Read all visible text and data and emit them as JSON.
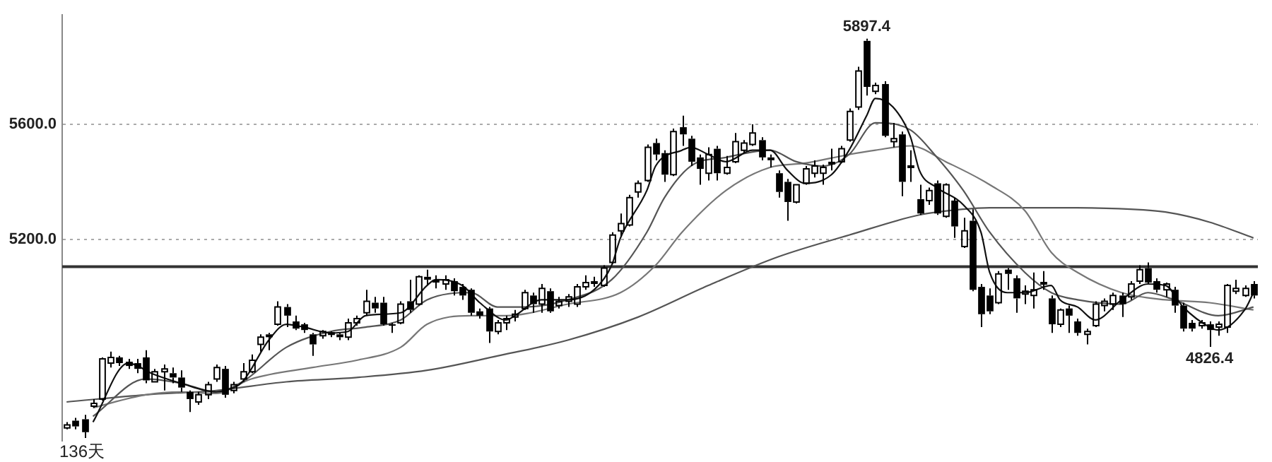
{
  "chart_data": {
    "type": "candlestick",
    "color": "#000000",
    "categories": [
      null,
      null,
      null,
      null,
      null,
      null,
      null,
      null,
      null,
      null,
      null,
      null,
      null,
      null,
      null,
      null,
      null,
      null,
      null,
      null,
      null,
      null,
      null,
      null,
      null,
      null,
      null,
      null,
      null,
      null,
      null,
      null,
      null,
      null,
      null,
      null,
      null,
      null,
      null,
      null,
      null,
      null,
      null,
      null,
      null,
      null,
      null,
      null,
      null,
      null,
      null,
      null,
      null,
      null,
      null,
      null,
      null,
      null,
      null,
      null,
      null,
      null,
      null,
      null,
      null,
      null,
      null,
      null,
      null,
      null,
      null,
      null,
      null,
      null,
      null,
      null,
      null,
      null,
      null,
      null,
      null,
      null,
      null,
      null,
      null,
      null,
      null,
      null,
      null,
      null,
      null,
      null,
      null,
      null,
      null,
      null,
      null,
      null,
      null,
      null,
      null,
      null,
      null,
      null,
      null,
      null,
      null,
      null,
      null,
      null,
      null,
      null,
      null,
      null,
      null,
      null,
      null,
      null,
      null,
      null,
      null,
      null,
      null,
      null,
      null,
      null,
      null,
      null,
      null,
      null,
      null,
      null,
      null,
      null,
      null,
      null
    ],
    "ohlc": [
      [
        4545,
        4565,
        4540,
        4555
      ],
      [
        4570,
        4580,
        4540,
        4550
      ],
      [
        4575,
        4590,
        4510,
        4530
      ],
      [
        4620,
        4645,
        4615,
        4630
      ],
      [
        4645,
        4790,
        4640,
        4785
      ],
      [
        4770,
        4810,
        4755,
        4790
      ],
      [
        4790,
        4795,
        4760,
        4770
      ],
      [
        4775,
        4785,
        4750,
        4760
      ],
      [
        4770,
        4785,
        4735,
        4750
      ],
      [
        4790,
        4815,
        4700,
        4710
      ],
      [
        4705,
        4750,
        4705,
        4740
      ],
      [
        4740,
        4765,
        4675,
        4750
      ],
      [
        4735,
        4755,
        4700,
        4720
      ],
      [
        4720,
        4745,
        4670,
        4685
      ],
      [
        4670,
        4675,
        4600,
        4645
      ],
      [
        4635,
        4670,
        4625,
        4660
      ],
      [
        4660,
        4705,
        4645,
        4695
      ],
      [
        4715,
        4765,
        4705,
        4755
      ],
      [
        4750,
        4760,
        4650,
        4660
      ],
      [
        4675,
        4705,
        4665,
        4695
      ],
      [
        4715,
        4770,
        4705,
        4740
      ],
      [
        4740,
        4800,
        4735,
        4780
      ],
      [
        4835,
        4870,
        4810,
        4860
      ],
      [
        4870,
        4875,
        4815,
        4860
      ],
      [
        4905,
        4985,
        4900,
        4965
      ],
      [
        4965,
        4975,
        4895,
        4935
      ],
      [
        4915,
        4935,
        4885,
        4890
      ],
      [
        4905,
        4910,
        4875,
        4885
      ],
      [
        4870,
        4875,
        4795,
        4835
      ],
      [
        4865,
        4885,
        4855,
        4880
      ],
      [
        4870,
        4880,
        4860,
        4875
      ],
      [
        4870,
        4875,
        4850,
        4860
      ],
      [
        4860,
        4925,
        4850,
        4910
      ],
      [
        4910,
        4935,
        4900,
        4925
      ],
      [
        4945,
        5025,
        4935,
        4985
      ],
      [
        4980,
        5000,
        4945,
        4960
      ],
      [
        4980,
        5000,
        4900,
        4905
      ],
      [
        4905,
        4910,
        4875,
        4900
      ],
      [
        4910,
        4985,
        4905,
        4975
      ],
      [
        4985,
        5060,
        4945,
        4955
      ],
      [
        4975,
        5075,
        4970,
        5070
      ],
      [
        5070,
        5095,
        5040,
        5060
      ],
      [
        5060,
        5075,
        5030,
        5050
      ],
      [
        5045,
        5075,
        5025,
        5060
      ],
      [
        5055,
        5065,
        5005,
        5020
      ],
      [
        5035,
        5045,
        4990,
        5005
      ],
      [
        5025,
        5030,
        4935,
        4945
      ],
      [
        4950,
        4960,
        4925,
        4935
      ],
      [
        4960,
        4965,
        4840,
        4880
      ],
      [
        4880,
        4920,
        4870,
        4910
      ],
      [
        4910,
        4935,
        4885,
        4925
      ],
      [
        4930,
        4955,
        4915,
        4940
      ],
      [
        4960,
        5025,
        4955,
        5015
      ],
      [
        5005,
        5015,
        4945,
        4975
      ],
      [
        4975,
        5045,
        4945,
        5030
      ],
      [
        5020,
        5030,
        4945,
        4950
      ],
      [
        4970,
        5000,
        4960,
        4985
      ],
      [
        4985,
        5010,
        4965,
        5000
      ],
      [
        4975,
        5045,
        4965,
        5035
      ],
      [
        5035,
        5075,
        5025,
        5050
      ],
      [
        5055,
        5070,
        5035,
        5045
      ],
      [
        5040,
        5110,
        5035,
        5100
      ],
      [
        5120,
        5225,
        5115,
        5215
      ],
      [
        5230,
        5290,
        5210,
        5255
      ],
      [
        5250,
        5355,
        5245,
        5345
      ],
      [
        5365,
        5405,
        5345,
        5395
      ],
      [
        5405,
        5530,
        5400,
        5520
      ],
      [
        5535,
        5550,
        5475,
        5495
      ],
      [
        5500,
        5510,
        5400,
        5425
      ],
      [
        5425,
        5585,
        5420,
        5575
      ],
      [
        5590,
        5630,
        5525,
        5565
      ],
      [
        5550,
        5560,
        5455,
        5470
      ],
      [
        5485,
        5495,
        5390,
        5445
      ],
      [
        5430,
        5520,
        5405,
        5495
      ],
      [
        5515,
        5525,
        5405,
        5430
      ],
      [
        5430,
        5490,
        5425,
        5450
      ],
      [
        5470,
        5570,
        5465,
        5540
      ],
      [
        5510,
        5545,
        5500,
        5535
      ],
      [
        5530,
        5600,
        5525,
        5570
      ],
      [
        5545,
        5555,
        5475,
        5485
      ],
      [
        5485,
        5495,
        5450,
        5475
      ],
      [
        5430,
        5440,
        5345,
        5365
      ],
      [
        5400,
        5410,
        5265,
        5330
      ],
      [
        5330,
        5390,
        5325,
        5390
      ],
      [
        5395,
        5455,
        5390,
        5445
      ],
      [
        5430,
        5475,
        5415,
        5455
      ],
      [
        5430,
        5460,
        5390,
        5450
      ],
      [
        5470,
        5515,
        5440,
        5460
      ],
      [
        5470,
        5525,
        5465,
        5515
      ],
      [
        5545,
        5655,
        5540,
        5645
      ],
      [
        5660,
        5800,
        5650,
        5785
      ],
      [
        5890,
        5897.4,
        5700,
        5730
      ],
      [
        5715,
        5745,
        5705,
        5735
      ],
      [
        5740,
        5750,
        5555,
        5560
      ],
      [
        5540,
        5605,
        5520,
        5550
      ],
      [
        5565,
        5575,
        5350,
        5400
      ],
      [
        5450,
        5510,
        5400,
        5455
      ],
      [
        5340,
        5390,
        5285,
        5290
      ],
      [
        5335,
        5380,
        5320,
        5370
      ],
      [
        5395,
        5405,
        5285,
        5290
      ],
      [
        5280,
        5395,
        5275,
        5390
      ],
      [
        5335,
        5345,
        5205,
        5245
      ],
      [
        5175,
        5275,
        5170,
        5230
      ],
      [
        5265,
        5305,
        5020,
        5025
      ],
      [
        5035,
        5045,
        4895,
        4940
      ],
      [
        5005,
        5030,
        4940,
        4950
      ],
      [
        4980,
        5090,
        4975,
        5080
      ],
      [
        5095,
        5100,
        5025,
        5080
      ],
      [
        5065,
        5075,
        4945,
        4995
      ],
      [
        5010,
        5040,
        4975,
        5020
      ],
      [
        5005,
        5085,
        4960,
        5025
      ],
      [
        5045,
        5090,
        5025,
        5050
      ],
      [
        4995,
        5005,
        4875,
        4905
      ],
      [
        4905,
        4960,
        4895,
        4955
      ],
      [
        4960,
        4970,
        4875,
        4935
      ],
      [
        4915,
        4925,
        4865,
        4875
      ],
      [
        4870,
        4890,
        4835,
        4880
      ],
      [
        4900,
        4985,
        4895,
        4975
      ],
      [
        4970,
        4995,
        4950,
        4985
      ],
      [
        4975,
        5015,
        4955,
        5005
      ],
      [
        5005,
        5015,
        4930,
        4975
      ],
      [
        5000,
        5055,
        4990,
        5045
      ],
      [
        5055,
        5110,
        5045,
        5095
      ],
      [
        5100,
        5120,
        5045,
        5050
      ],
      [
        5055,
        5065,
        5015,
        5025
      ],
      [
        5025,
        5050,
        5000,
        5045
      ],
      [
        5025,
        5035,
        4945,
        4970
      ],
      [
        4970,
        4980,
        4880,
        4890
      ],
      [
        4910,
        4920,
        4880,
        4890
      ],
      [
        4900,
        4920,
        4890,
        4910
      ],
      [
        4905,
        4915,
        4826.4,
        4885
      ],
      [
        4895,
        4915,
        4865,
        4905
      ],
      [
        4895,
        5045,
        4875,
        5040
      ],
      [
        5020,
        5060,
        5010,
        5030
      ],
      [
        5005,
        5040,
        5000,
        5030
      ],
      [
        5045,
        5055,
        4995,
        5005
      ]
    ],
    "series": [
      {
        "type": "line",
        "color": "#111111",
        "values": [
          null,
          null,
          null,
          4565,
          null,
          null,
          null,
          4770,
          null,
          null,
          4730,
          null,
          null,
          4700,
          null,
          null,
          null,
          4670,
          4675,
          null,
          4705,
          null,
          null,
          4850,
          null,
          4905,
          null,
          4895,
          null,
          null,
          4875,
          null,
          4880,
          null,
          4935,
          null,
          null,
          null,
          4945,
          null,
          null,
          5040,
          5060,
          null,
          null,
          5040,
          null,
          4980,
          null,
          null,
          4920,
          4935,
          null,
          null,
          4990,
          null,
          null,
          4990,
          null,
          null,
          5025,
          null,
          5110,
          5205,
          null,
          null,
          5370,
          5455,
          null,
          null,
          5510,
          5520,
          null,
          5495,
          null,
          5470,
          null,
          null,
          5510,
          null,
          5510,
          null,
          5440,
          null,
          5395,
          null,
          null,
          5425,
          null,
          5510,
          null,
          5630,
          5690,
          null,
          5660,
          null,
          5555,
          5440,
          null,
          5380,
          null,
          null,
          5320,
          null,
          5225,
          5085,
          null,
          5015,
          null,
          5015,
          null,
          null,
          5040,
          4990,
          null,
          4965,
          null,
          4920,
          null,
          null,
          4990,
          null,
          null,
          5045,
          null,
          5040,
          null,
          4965,
          null,
          null,
          4895,
          4885,
          null,
          null,
          4955,
          5015
        ]
      },
      {
        "type": "line",
        "color": "#555555",
        "values": [
          null,
          null,
          null,
          4585,
          null,
          null,
          null,
          null,
          null,
          4715,
          null,
          null,
          null,
          4700,
          null,
          null,
          null,
          4670,
          null,
          null,
          4705,
          null,
          null,
          null,
          null,
          4825,
          null,
          null,
          null,
          null,
          4880,
          null,
          null,
          null,
          4895,
          null,
          null,
          null,
          4920,
          null,
          null,
          4990,
          null,
          null,
          null,
          null,
          5015,
          null,
          null,
          4965,
          null,
          null,
          4965,
          null,
          null,
          null,
          null,
          4990,
          null,
          null,
          null,
          null,
          5060,
          null,
          null,
          null,
          5225,
          null,
          5345,
          null,
          null,
          5455,
          null,
          null,
          null,
          5485,
          null,
          null,
          null,
          null,
          5510,
          null,
          null,
          5470,
          null,
          null,
          5455,
          null,
          null,
          5495,
          null,
          null,
          5605,
          null,
          null,
          null,
          5580,
          null,
          null,
          5485,
          null,
          null,
          5370,
          null,
          null,
          5225,
          null,
          null,
          null,
          5085,
          null,
          null,
          5015,
          null,
          null,
          4990,
          null,
          null,
          null,
          null,
          4975,
          null,
          null,
          5015,
          null,
          null,
          4990,
          null,
          null,
          null,
          null,
          4935,
          null,
          null,
          null,
          4965
        ]
      },
      {
        "type": "line",
        "color": "#777777",
        "values": [
          null,
          null,
          null,
          4615,
          null,
          null,
          null,
          null,
          null,
          4660,
          null,
          null,
          null,
          4670,
          null,
          null,
          null,
          4665,
          null,
          null,
          null,
          4715,
          null,
          null,
          null,
          null,
          null,
          null,
          4755,
          null,
          null,
          null,
          null,
          4780,
          null,
          null,
          null,
          null,
          4825,
          null,
          null,
          4905,
          null,
          null,
          null,
          null,
          4935,
          null,
          null,
          null,
          4935,
          null,
          null,
          null,
          null,
          null,
          null,
          4975,
          null,
          null,
          null,
          null,
          null,
          5015,
          null,
          null,
          null,
          5110,
          null,
          null,
          5225,
          null,
          null,
          null,
          null,
          5370,
          null,
          null,
          null,
          null,
          5450,
          null,
          null,
          null,
          5465,
          null,
          null,
          null,
          null,
          5495,
          null,
          null,
          5510,
          null,
          null,
          null,
          5525,
          null,
          null,
          null,
          5470,
          null,
          null,
          null,
          null,
          5390,
          null,
          null,
          null,
          5300,
          null,
          null,
          5155,
          null,
          null,
          5085,
          null,
          null,
          null,
          null,
          5015,
          null,
          null,
          null,
          null,
          4990,
          null,
          null,
          null,
          null,
          4980,
          null,
          null,
          null,
          null,
          4955
        ]
      },
      {
        "type": "line",
        "color": "#555555",
        "values": [
          4635,
          null,
          null,
          null,
          null,
          null,
          null,
          null,
          null,
          4660,
          null,
          null,
          null,
          null,
          null,
          null,
          null,
          4675,
          null,
          null,
          null,
          null,
          null,
          null,
          null,
          4705,
          null,
          null,
          null,
          null,
          null,
          null,
          null,
          4720,
          null,
          null,
          null,
          null,
          null,
          null,
          null,
          4745,
          null,
          null,
          null,
          null,
          null,
          null,
          null,
          4795,
          null,
          null,
          null,
          null,
          null,
          null,
          null,
          4850,
          null,
          null,
          null,
          null,
          null,
          null,
          null,
          4930,
          null,
          null,
          null,
          null,
          null,
          null,
          null,
          5040,
          null,
          null,
          null,
          null,
          null,
          null,
          null,
          5140,
          null,
          null,
          null,
          null,
          null,
          null,
          null,
          5215,
          null,
          null,
          null,
          null,
          null,
          null,
          null,
          5285,
          null,
          null,
          null,
          null,
          5305,
          null,
          null,
          5310,
          null,
          null,
          null,
          null,
          null,
          null,
          null,
          5310,
          null,
          null,
          null,
          null,
          null,
          null,
          null,
          5305,
          null,
          null,
          null,
          5295,
          null,
          null,
          null,
          null,
          5260,
          null,
          null,
          null,
          null,
          5205
        ]
      }
    ],
    "ylim": [
      4500,
      5980
    ],
    "yticks": [
      {
        "value": 5200,
        "label": "5200.0"
      },
      {
        "value": 5600,
        "label": "5600.0"
      }
    ],
    "grid": "y",
    "tick_labels": "y",
    "ref_lines": [
      {
        "axis": "y",
        "value": 5105,
        "color": "#333333"
      }
    ],
    "annotations": [
      "136天",
      {
        "text": "5897.4",
        "y": 5897.4
      },
      {
        "text": "4826.4",
        "y": 4826.4
      }
    ]
  }
}
